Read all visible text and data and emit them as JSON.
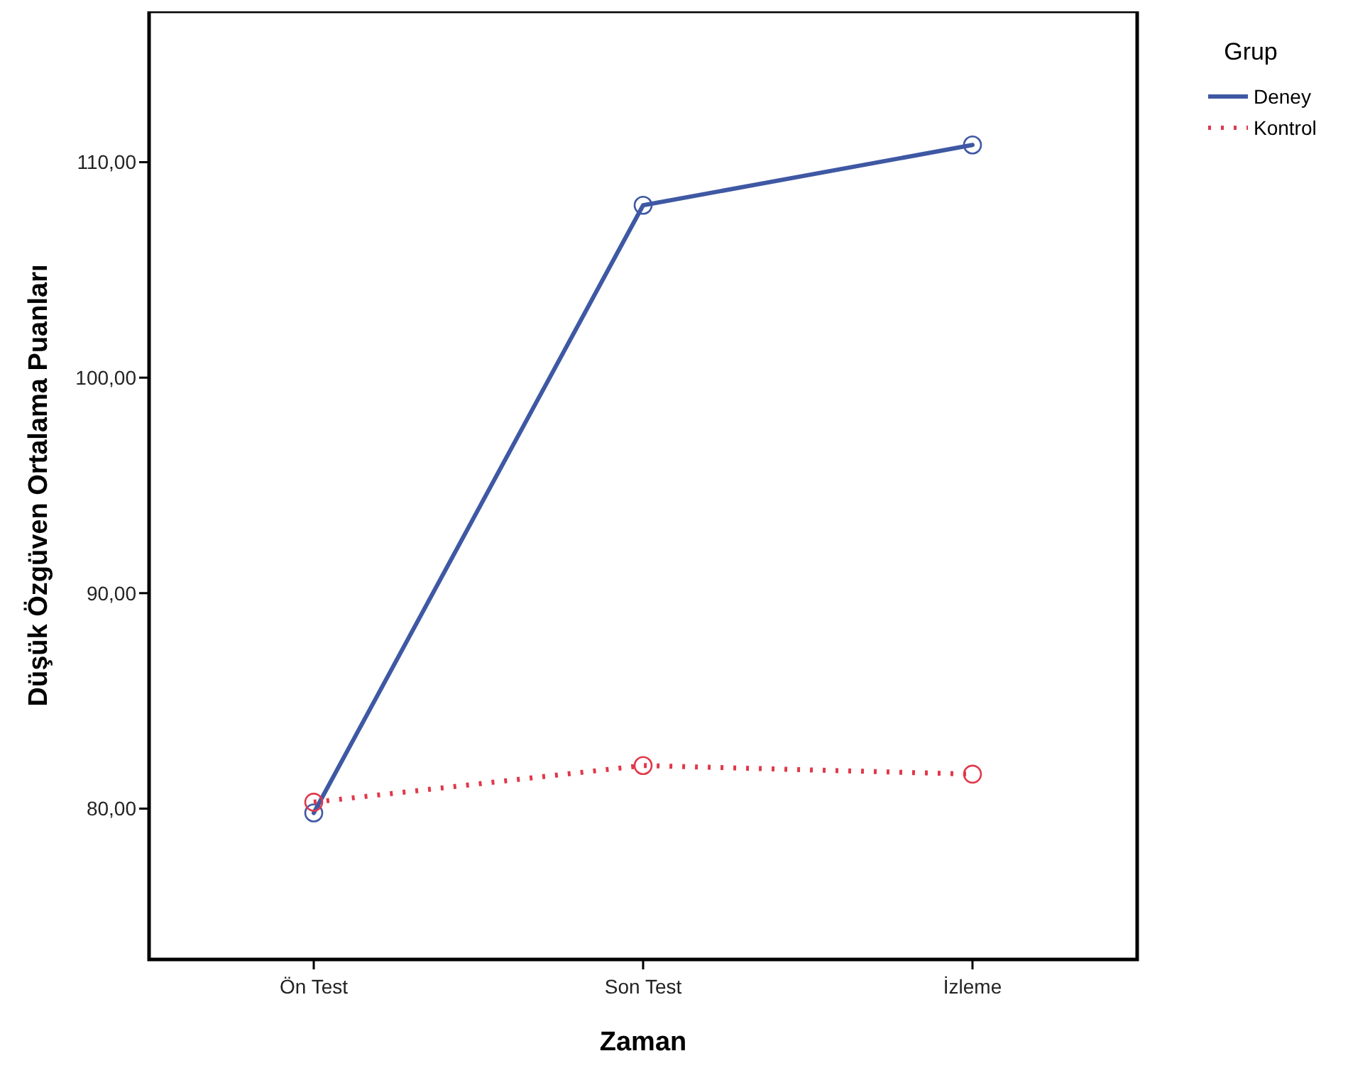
{
  "chart_data": {
    "type": "line",
    "xlabel": "Zaman",
    "ylabel": "Düşük Özgüven Ortalama Puanları",
    "legend_title": "Grup",
    "legend": "top right",
    "marker": "circle",
    "grid": false,
    "categories": [
      "Ön Test",
      "Son Test",
      "İzleme"
    ],
    "ylim": [
      73,
      117
    ],
    "yticks": [
      {
        "value": 80,
        "label": "80,00"
      },
      {
        "value": 90,
        "label": "90,00"
      },
      {
        "value": 100,
        "label": "100,00"
      },
      {
        "value": 110,
        "label": "110,00"
      }
    ],
    "series": [
      {
        "name": "Deney",
        "color": "#3f58a4",
        "line_style": "solid",
        "values": [
          79.8,
          108.0,
          110.8
        ]
      },
      {
        "name": "Kontrol",
        "color": "#e0384a",
        "line_style": "dotted",
        "values": [
          80.3,
          82.0,
          81.6
        ]
      }
    ]
  }
}
